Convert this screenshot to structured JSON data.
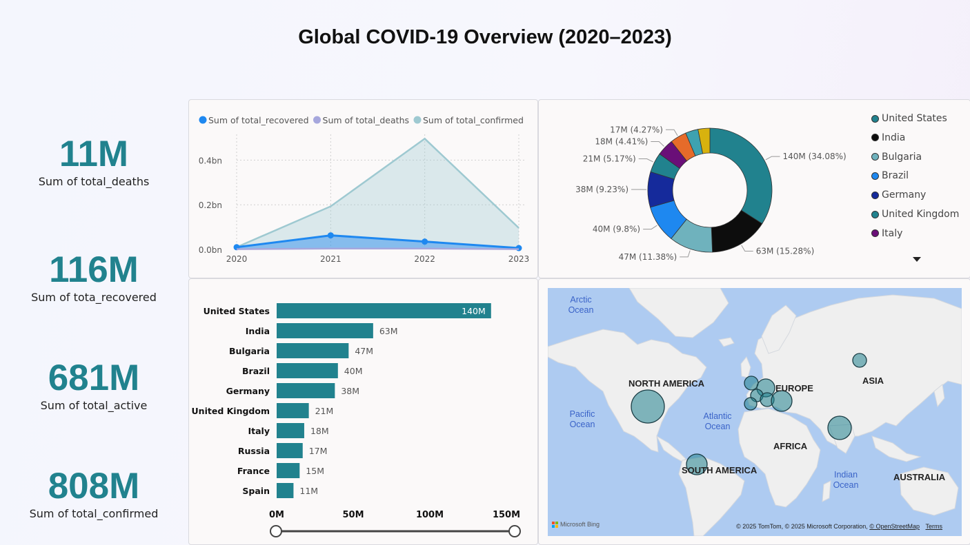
{
  "page": {
    "title": "Global COVID-19 Overview (2020–2023)"
  },
  "kpis": [
    {
      "value": "11M",
      "label": "Sum of total_deaths"
    },
    {
      "value": "116M",
      "label": "Sum of tota_recovered"
    },
    {
      "value": "681M",
      "label": "Sum of total_active"
    },
    {
      "value": "808M",
      "label": "Sum of total_confirmed"
    }
  ],
  "colors": {
    "accent": "#21828e",
    "recovered": "#1e88f0",
    "deaths": "#a6a7dd",
    "confirmed": "#9ec9d1"
  },
  "line_chart": {
    "chart_data": {
      "type": "area",
      "x": [
        "2020",
        "2021",
        "2022",
        "2023"
      ],
      "yticks": [
        "0.0bn",
        "0.2bn",
        "0.4bn"
      ],
      "ylim": [
        0,
        0.5
      ],
      "grid": true,
      "legend_position": "top-left",
      "series": [
        {
          "name": "Sum of total_recovered",
          "values": [
            0.01,
            0.063,
            0.035,
            0.006
          ]
        },
        {
          "name": "Sum of total_deaths",
          "values": [
            0.001,
            0.004,
            0.004,
            0.001
          ]
        },
        {
          "name": "Sum of total_confirmed",
          "values": [
            0.01,
            0.193,
            0.496,
            0.096
          ]
        }
      ]
    }
  },
  "donut_chart": {
    "chart_data": {
      "type": "pie",
      "legend_position": "right",
      "slices": [
        {
          "label": "140M (34.08%)",
          "value": 34.08,
          "color": "#21828e"
        },
        {
          "label": "63M (15.28%)",
          "value": 15.28,
          "color": "#0d0d0d"
        },
        {
          "label": "47M (11.38%)",
          "value": 11.38,
          "color": "#6fb2bd"
        },
        {
          "label": "40M (9.8%)",
          "value": 9.8,
          "color": "#1e88f0"
        },
        {
          "label": "38M (9.23%)",
          "value": 9.23,
          "color": "#152a9b"
        },
        {
          "label": "21M (5.17%)",
          "value": 5.17,
          "color": "#21828e"
        },
        {
          "label": "18M (4.41%)",
          "value": 4.41,
          "color": "#6a0f78"
        },
        {
          "label": "17M (4.27%)",
          "value": 4.27,
          "color": "#e66b2a"
        },
        {
          "label": "",
          "value": 3.3,
          "color": "#3ea2b0"
        },
        {
          "label": "",
          "value": 3.08,
          "color": "#d8b20e"
        }
      ],
      "legend": [
        {
          "name": "United States",
          "color": "#21828e"
        },
        {
          "name": "India",
          "color": "#0d0d0d"
        },
        {
          "name": "Bulgaria",
          "color": "#6fb2bd"
        },
        {
          "name": "Brazil",
          "color": "#1e88f0"
        },
        {
          "name": "Germany",
          "color": "#152a9b"
        },
        {
          "name": "United Kingdom",
          "color": "#21828e"
        },
        {
          "name": "Italy",
          "color": "#6a0f78"
        }
      ],
      "more_icon": "triangle-down-icon"
    }
  },
  "bar_chart": {
    "chart_data": {
      "type": "bar",
      "orientation": "horizontal",
      "categories": [
        "United States",
        "India",
        "Bulgaria",
        "Brazil",
        "Germany",
        "United Kingdom",
        "Italy",
        "Russia",
        "France",
        "Spain"
      ],
      "values": [
        140,
        63,
        47,
        40,
        38,
        21,
        18,
        17,
        15,
        11
      ],
      "data_labels": [
        "140M",
        "63M",
        "47M",
        "40M",
        "38M",
        "21M",
        "18M",
        "17M",
        "15M",
        "11M"
      ],
      "xticks": [
        "0M",
        "50M",
        "100M",
        "150M"
      ],
      "xlim": [
        0,
        157
      ],
      "color": "#21828e"
    }
  },
  "map": {
    "continents": [
      "NORTH AMERICA",
      "SOUTH AMERICA",
      "EUROPE",
      "AFRICA",
      "ASIA",
      "AUSTRALIA"
    ],
    "oceans": [
      "Arctic Ocean",
      "Pacific Ocean",
      "Atlantic Ocean",
      "Indian Ocean"
    ],
    "logo": "Microsoft Bing",
    "attribution": "© 2025 TomTom, © 2025 Microsoft Corporation,",
    "attribution_link": "© OpenStreetMap",
    "terms": "Terms"
  }
}
